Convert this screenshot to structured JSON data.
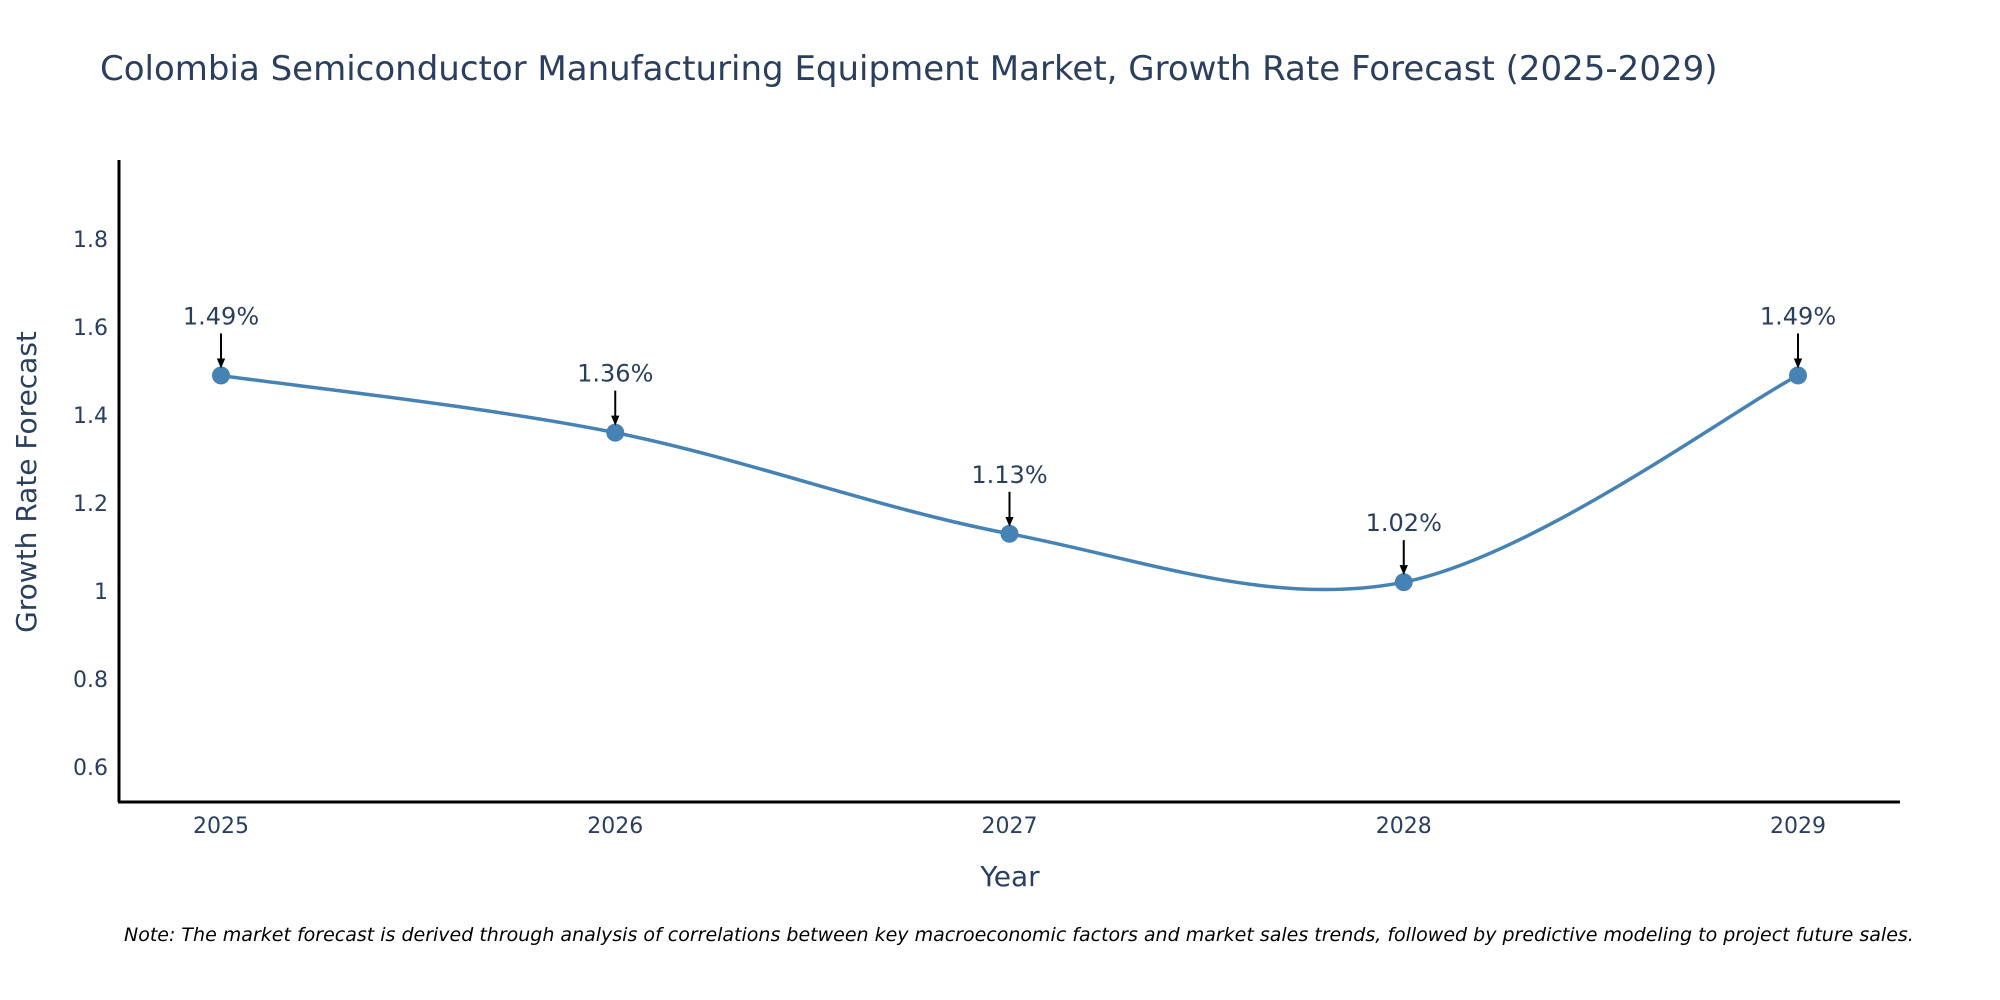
{
  "chart_data": {
    "type": "line",
    "title": "Colombia Semiconductor Manufacturing Equipment Market, Growth Rate Forecast (2025-2029)",
    "xlabel": "Year",
    "ylabel": "Growth Rate Forecast",
    "categories": [
      "2025",
      "2026",
      "2027",
      "2028",
      "2029"
    ],
    "series": [
      {
        "name": "Growth Rate Forecast",
        "values": [
          1.49,
          1.36,
          1.13,
          1.02,
          1.49
        ],
        "labels": [
          "1.49%",
          "1.36%",
          "1.13%",
          "1.02%",
          "1.49%"
        ],
        "color": "#4682b4"
      }
    ],
    "ylim": [
      0.52,
      1.98
    ],
    "yticks": [
      0.6,
      0.8,
      1,
      1.2,
      1.4,
      1.6,
      1.8
    ],
    "ytick_labels": [
      "0.6",
      "0.8",
      "1",
      "1.2",
      "1.4",
      "1.6",
      "1.8"
    ],
    "grid": false,
    "line_shape": "spline",
    "annotation_arrow_color": "#000000",
    "axis_color": "#000000",
    "text_color": "#2a3f5f"
  },
  "footnote": "Note: The market forecast is derived through analysis of correlations between key macroeconomic factors and market sales trends, followed by predictive modeling to project future sales."
}
